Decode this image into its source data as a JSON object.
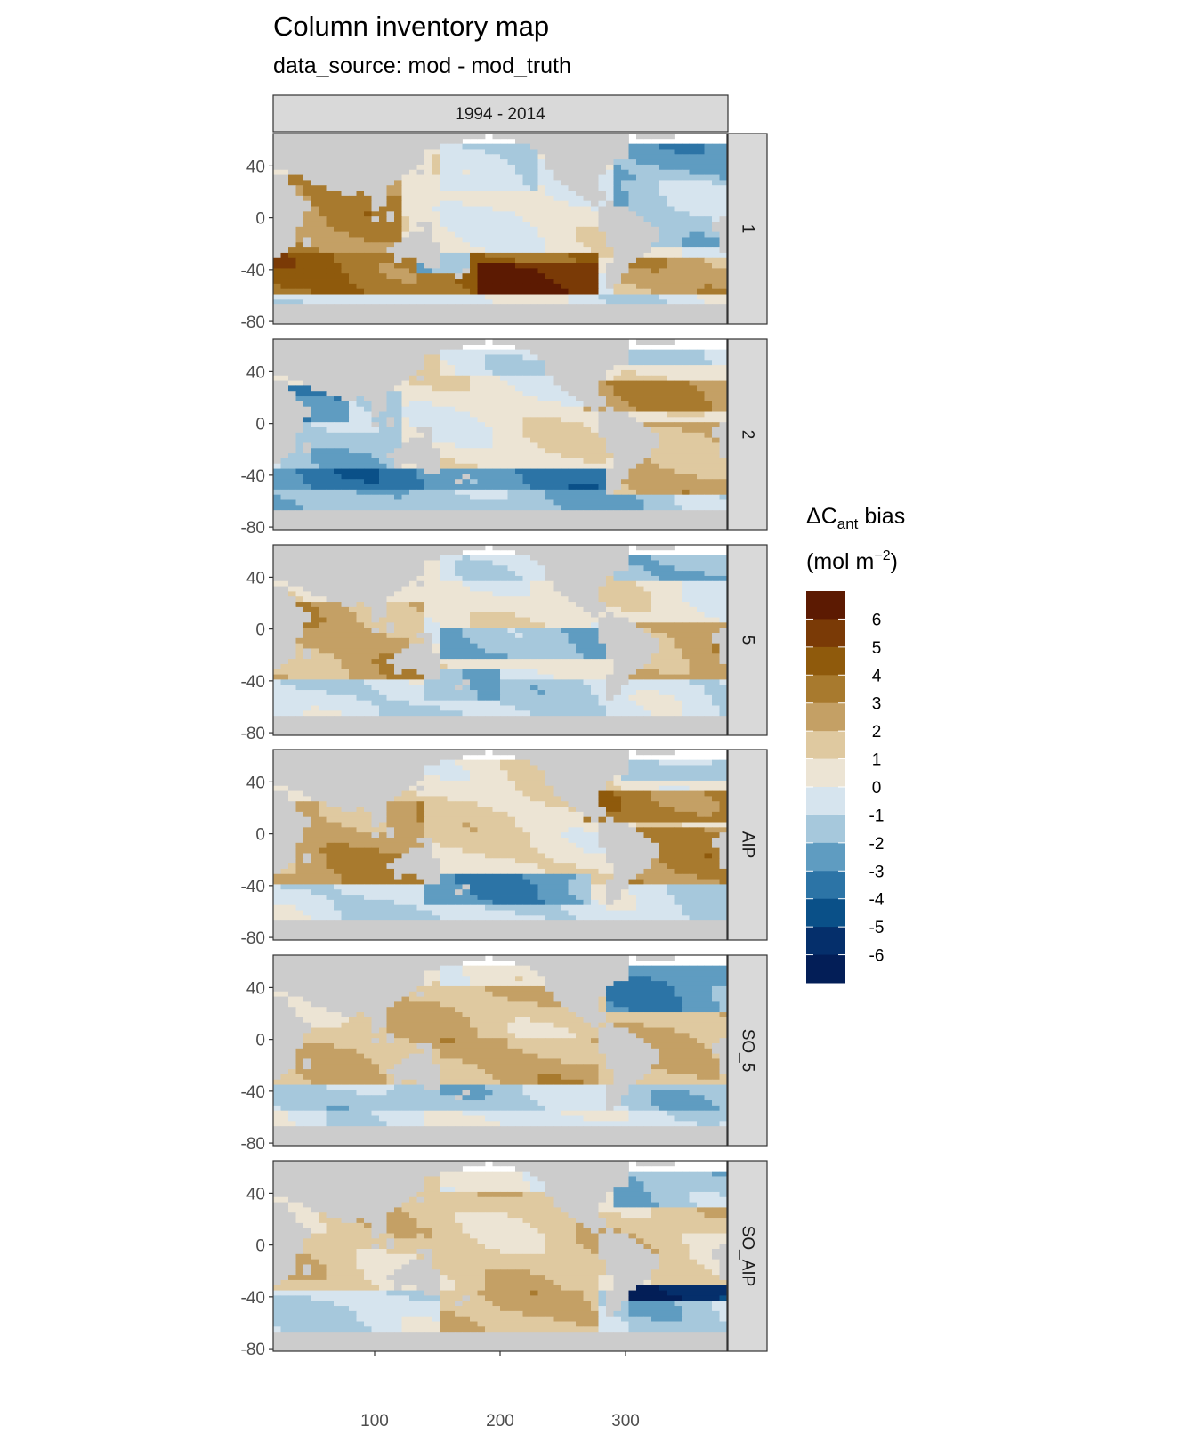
{
  "title": "Column inventory map",
  "subtitle": "data_source: mod - mod_truth",
  "column_strip": "1994 - 2014",
  "panels": [
    {
      "label": "1",
      "pattern": "pos_west_south"
    },
    {
      "label": "2",
      "pattern": "neg_south_pos_atl"
    },
    {
      "label": "5",
      "pattern": "mixed_eq_neg"
    },
    {
      "label": "AIP",
      "pattern": "mixed_eq_pos"
    },
    {
      "label": "SO_5",
      "pattern": "pos_north_neg_south"
    },
    {
      "label": "SO_AIP",
      "pattern": "pos_north_neg_south_atl"
    }
  ],
  "axes": {
    "y_ticks": [
      "40",
      "0",
      "-40",
      "-80"
    ],
    "x_ticks": [
      "100",
      "200",
      "300"
    ]
  },
  "legend": {
    "title_main": "ΔC",
    "title_sub": "ant",
    "title_rest": " bias",
    "title_line2": "(mol m",
    "title_sup": "−2",
    "title_close": ")",
    "labels": [
      "6",
      "5",
      "4",
      "3",
      "2",
      "1",
      "0",
      "-1",
      "-2",
      "-3",
      "-4",
      "-5",
      "-6"
    ],
    "colors": [
      "#5c1a02",
      "#7a3a06",
      "#8f5a0c",
      "#a87a2e",
      "#c4a065",
      "#dfc9a0",
      "#ece4d4",
      "#d6e4ee",
      "#a6c8dc",
      "#5f9cc1",
      "#2c74a6",
      "#0a5088",
      "#052f6b",
      "#031e57"
    ]
  },
  "colors": {
    "land": "#cccccc",
    "strip_bg": "#d9d9d9",
    "panel_border": "#333333"
  }
}
